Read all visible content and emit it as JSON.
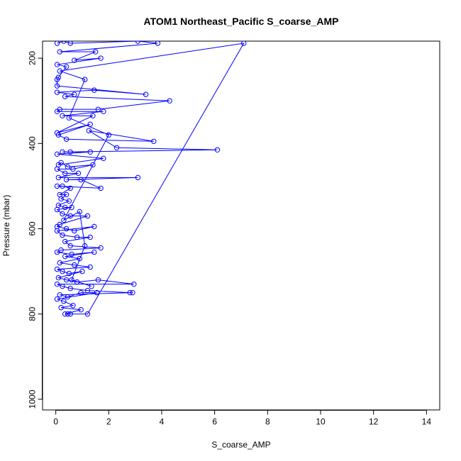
{
  "chart_data": {
    "type": "line",
    "title": "ATOM1 Northeast_Pacific S_coarse_AMP",
    "xlabel": "S_coarse_AMP",
    "ylabel": "Pressure (mbar)",
    "xlim": [
      -0.5,
      14.5
    ],
    "ylim": [
      1025,
      160
    ],
    "y_reversed": true,
    "xticks": [
      0,
      2,
      4,
      6,
      8,
      10,
      12,
      14
    ],
    "yticks": [
      200,
      400,
      600,
      800,
      1000
    ],
    "grid": false,
    "legend": "none",
    "series": [
      {
        "color": "#0000ff",
        "marker": "open-circle",
        "points": [
          [
            0.05,
            165
          ],
          [
            0.3,
            160
          ],
          [
            0.55,
            165
          ],
          [
            3.1,
            160
          ],
          [
            3.85,
            165
          ],
          [
            0.15,
            185
          ],
          [
            1.5,
            185
          ],
          [
            0.7,
            205
          ],
          [
            1.7,
            200
          ],
          [
            0.05,
            215
          ],
          [
            0.4,
            220
          ],
          [
            0.1,
            245
          ],
          [
            0.05,
            250
          ],
          [
            0.05,
            265
          ],
          [
            3.4,
            285
          ],
          [
            1.45,
            275
          ],
          [
            0.05,
            280
          ],
          [
            0.7,
            285
          ],
          [
            0.35,
            290
          ],
          [
            4.3,
            300
          ],
          [
            1.6,
            320
          ],
          [
            0.15,
            320
          ],
          [
            0.05,
            325
          ],
          [
            1.8,
            325
          ],
          [
            0.25,
            335
          ],
          [
            1.4,
            335
          ],
          [
            0.05,
            375
          ],
          [
            1.3,
            355
          ],
          [
            0.1,
            380
          ],
          [
            0.4,
            390
          ],
          [
            3.7,
            395
          ],
          [
            1.25,
            370
          ],
          [
            2.3,
            410
          ],
          [
            6.1,
            415
          ],
          [
            0.25,
            420
          ],
          [
            0.55,
            420
          ],
          [
            1.3,
            420
          ],
          [
            0.05,
            425
          ],
          [
            1.8,
            435
          ],
          [
            0.1,
            450
          ],
          [
            0.2,
            445
          ],
          [
            0.45,
            455
          ],
          [
            1.4,
            450
          ],
          [
            0.65,
            460
          ],
          [
            0.05,
            460
          ],
          [
            0.35,
            470
          ],
          [
            0.85,
            470
          ],
          [
            0.1,
            480
          ],
          [
            3.1,
            480
          ],
          [
            0.4,
            485
          ],
          [
            0.95,
            485
          ],
          [
            1.7,
            505
          ],
          [
            0.05,
            500
          ],
          [
            0.25,
            500
          ],
          [
            0.55,
            505
          ],
          [
            0.15,
            520
          ],
          [
            0.4,
            520
          ],
          [
            0.2,
            530
          ],
          [
            0.5,
            535
          ],
          [
            0.1,
            545
          ],
          [
            0.35,
            550
          ],
          [
            0.6,
            550
          ],
          [
            0.05,
            555
          ],
          [
            0.25,
            565
          ],
          [
            0.55,
            570
          ],
          [
            1.2,
            570
          ],
          [
            0.15,
            590
          ],
          [
            0.05,
            595
          ],
          [
            0.4,
            600
          ],
          [
            0.7,
            605
          ],
          [
            1.45,
            595
          ],
          [
            0.05,
            605
          ],
          [
            0.25,
            615
          ],
          [
            0.8,
            620
          ],
          [
            1.3,
            620
          ],
          [
            0.35,
            630
          ],
          [
            0.55,
            640
          ],
          [
            1.7,
            645
          ],
          [
            0.2,
            650
          ],
          [
            0.05,
            655
          ],
          [
            0.6,
            660
          ],
          [
            1.45,
            655
          ],
          [
            0.35,
            665
          ],
          [
            0.9,
            670
          ],
          [
            0.15,
            680
          ],
          [
            0.7,
            685
          ],
          [
            1.3,
            690
          ],
          [
            0.05,
            695
          ],
          [
            0.25,
            700
          ],
          [
            0.5,
            705
          ],
          [
            1.0,
            700
          ],
          [
            0.1,
            715
          ],
          [
            0.4,
            720
          ],
          [
            0.8,
            725
          ],
          [
            1.6,
            720
          ],
          [
            2.95,
            730
          ],
          [
            0.05,
            730
          ],
          [
            0.25,
            735
          ],
          [
            0.55,
            740
          ],
          [
            1.2,
            745
          ],
          [
            2.8,
            750
          ],
          [
            2.9,
            750
          ],
          [
            0.15,
            755
          ],
          [
            0.45,
            760
          ],
          [
            0.95,
            750
          ],
          [
            1.55,
            750
          ],
          [
            0.05,
            765
          ],
          [
            0.3,
            770
          ],
          [
            0.65,
            780
          ],
          [
            0.2,
            785
          ],
          [
            0.95,
            790
          ],
          [
            0.35,
            800
          ],
          [
            0.45,
            800
          ],
          [
            0.55,
            800
          ],
          [
            1.2,
            800
          ],
          [
            7.1,
            165
          ],
          [
            0.15,
            230
          ],
          [
            1.1,
            250
          ],
          [
            0.5,
            340
          ],
          [
            2.0,
            380
          ],
          [
            0.3,
            580
          ],
          [
            0.9,
            560
          ],
          [
            1.1,
            640
          ],
          [
            0.6,
            720
          ],
          [
            1.35,
            735
          ]
        ]
      }
    ]
  }
}
